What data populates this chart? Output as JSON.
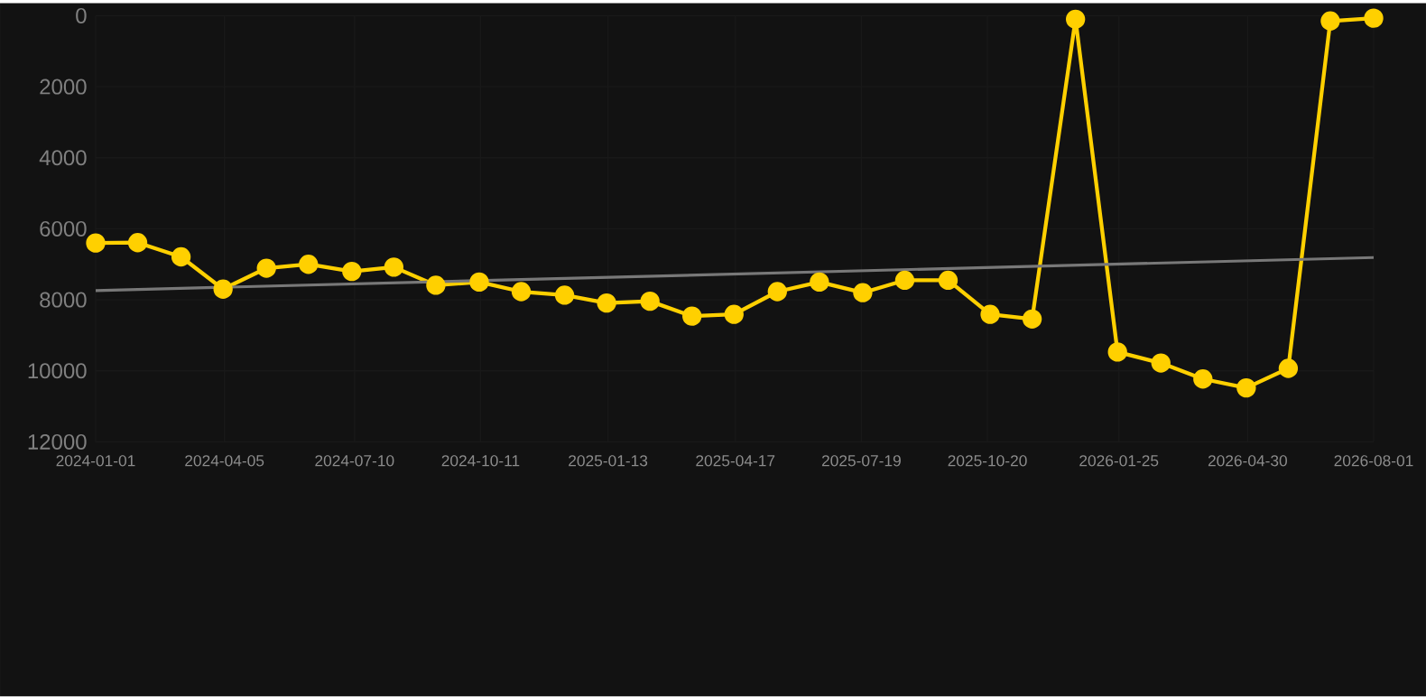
{
  "chart_data": {
    "type": "line",
    "x": [
      "2024-01-01",
      "2024-02-01",
      "2024-03-04",
      "2024-04-04",
      "2024-05-06",
      "2024-06-06",
      "2024-07-08",
      "2024-08-08",
      "2024-09-08",
      "2024-10-10",
      "2024-11-10",
      "2024-12-12",
      "2025-01-12",
      "2025-02-13",
      "2025-03-16",
      "2025-04-16",
      "2025-05-18",
      "2025-06-18",
      "2025-07-20",
      "2025-08-20",
      "2025-09-21",
      "2025-10-22",
      "2025-11-22",
      "2025-12-24",
      "2026-01-24",
      "2026-02-25",
      "2026-03-28",
      "2026-04-29",
      "2026-05-30",
      "2026-06-30",
      "2026-08-01"
    ],
    "series": [
      {
        "color": "#ffd000",
        "marker": "circle",
        "values": [
          6400,
          6390,
          6790,
          7700,
          7110,
          7000,
          7200,
          7080,
          7590,
          7500,
          7770,
          7870,
          8090,
          8040,
          8460,
          8410,
          7770,
          7500,
          7800,
          7450,
          7450,
          8410,
          8540,
          100,
          9470,
          9780,
          10230,
          10480,
          9930,
          150,
          70
        ]
      },
      {
        "type": "line",
        "color": "#787878",
        "marker": "none",
        "x": [
          "2024-01-01",
          "2026-08-01"
        ],
        "values": [
          7740,
          6810
        ]
      }
    ],
    "xlim": [
      "2024-01-01",
      "2026-08-01"
    ],
    "xticks": [
      "2024-01-01",
      "2024-04-05",
      "2024-07-10",
      "2024-10-11",
      "2025-01-13",
      "2025-04-17",
      "2025-07-19",
      "2025-10-20",
      "2026-01-25",
      "2026-04-30",
      "2026-08-01"
    ],
    "ylim": [
      12000,
      0
    ],
    "yticks": [
      0,
      2000,
      4000,
      6000,
      8000,
      10000,
      12000
    ],
    "grid": true,
    "line_style": "solid"
  }
}
